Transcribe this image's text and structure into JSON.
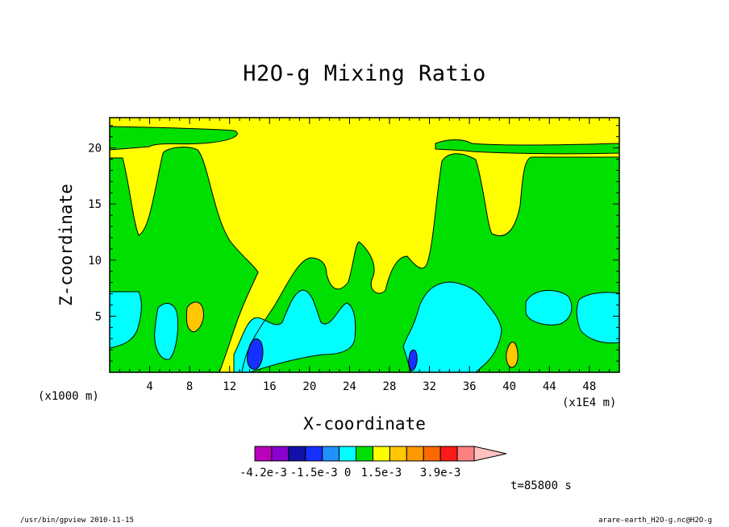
{
  "chart_data": {
    "type": "heatmap",
    "title": "H2O-g Mixing Ratio",
    "xlabel": "X-coordinate",
    "ylabel": "Z-coordinate",
    "x_unit_note": "(x1000 m)",
    "x_scale_note": "(x1E4 m)",
    "time_label": "t=85800 s",
    "x_ticks": [
      4,
      8,
      12,
      16,
      20,
      24,
      28,
      32,
      36,
      40,
      44,
      48
    ],
    "y_ticks": [
      5,
      10,
      15,
      20
    ],
    "xlim": [
      0,
      51
    ],
    "ylim": [
      0,
      22.7
    ],
    "colorbar": {
      "colors": [
        "#bb00bb",
        "#8a00cc",
        "#1010a8",
        "#1530ff",
        "#1e90ff",
        "#00ffff",
        "#00e000",
        "#ffff00",
        "#ffc800",
        "#ff9900",
        "#ff6a00",
        "#ff1a1a",
        "#ff8080",
        "#ffc0c0"
      ],
      "tick_labels": [
        "-4.2e-3",
        "-1.5e-3",
        "0",
        "1.5e-3",
        "3.9e-3"
      ]
    },
    "palette": {
      "yellow": "#ffff00",
      "green": "#00e000",
      "cyan": "#00ffff",
      "orange": "#ffc800",
      "blue": "#1530ff"
    }
  },
  "footer": {
    "left": "/usr/bin/gpview  2010-11-15",
    "right": "arare-earth_H2O-g.nc@H2O-g"
  }
}
